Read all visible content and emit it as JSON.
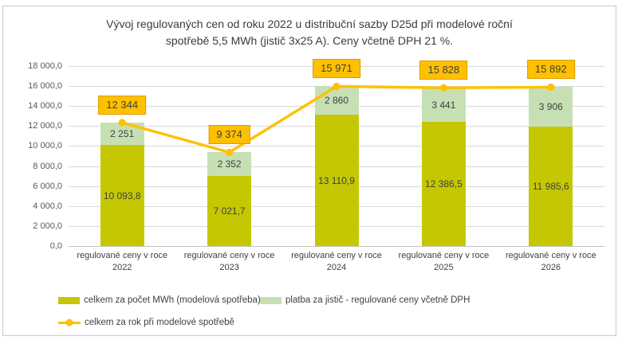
{
  "chart_data": {
    "type": "bar",
    "subtype": "stacked-column-with-line-overlay",
    "title": "Vývoj regulovaných cen od roku 2022 u distribuční sazby D25d při modelové roční spotřebě 5,5 MWh (jistič 3x25 A). Ceny včetně DPH 21 %.",
    "title_lines": [
      "Vývoj regulovaných cen od roku 2022 u distribuční sazby D25d při modelové roční",
      "spotřebě 5,5 MWh (jistič 3x25 A). Ceny včetně DPH 21 %."
    ],
    "categories": [
      "regulované ceny v roce 2022",
      "regulované ceny v roce 2023",
      "regulované ceny v roce 2024",
      "regulované ceny v roce 2025",
      "regulované ceny v roce 2026"
    ],
    "category_label_line1": "regulované ceny v roce",
    "category_years": [
      "2022",
      "2023",
      "2024",
      "2025",
      "2026"
    ],
    "series": [
      {
        "name": "celkem za počet MWh (modelová spotřeba)",
        "type": "bar",
        "color": "#c5c702",
        "values": [
          10093.8,
          7021.7,
          13110.9,
          12386.5,
          11985.6
        ],
        "labels": [
          "10 093,8",
          "7 021,7",
          "13 110,9",
          "12 386,5",
          "11 985,6"
        ]
      },
      {
        "name": "platba za jistič - regulované ceny včetně DPH",
        "type": "bar",
        "color": "#c6e0b4",
        "values": [
          2251,
          2352,
          2860,
          3441,
          3906
        ],
        "labels": [
          "2 251",
          "2 352",
          "2 860",
          "3 441",
          "3 906"
        ]
      },
      {
        "name": "celkem za rok při modelové spotřebě",
        "type": "line",
        "color": "#ffc000",
        "values": [
          12344,
          9374,
          15971,
          15828,
          15892
        ],
        "labels": [
          "12 344",
          "9 374",
          "15 971",
          "15 828",
          "15 892"
        ]
      }
    ],
    "y_axis": {
      "min": 0,
      "max": 18000,
      "step": 2000,
      "tick_labels": [
        "0,0",
        "2 000,0",
        "4 000,0",
        "6 000,0",
        "8 000,0",
        "10 000,0",
        "12 000,0",
        "14 000,0",
        "16 000,0",
        "18 000,0"
      ]
    },
    "grid": true,
    "legend_position": "bottom-left",
    "colors": {
      "background": "#ffffff",
      "frame_border": "#c9c9c9",
      "gridline": "#d9d9d9",
      "axis_line": "#c3c3c3",
      "tick_text": "#595959",
      "label_text": "#404040",
      "total_box_fill": "#ffc000",
      "total_box_border": "#d89e00"
    }
  }
}
